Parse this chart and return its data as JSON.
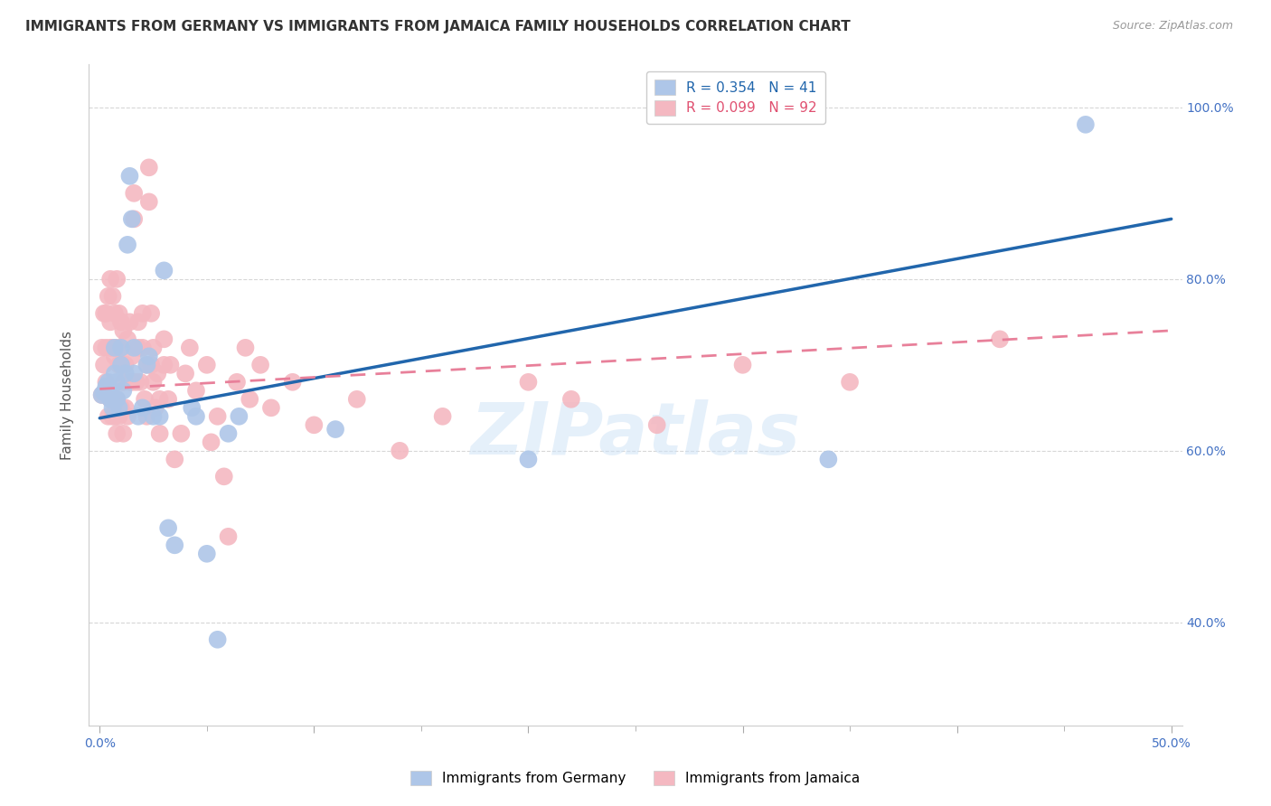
{
  "title": "IMMIGRANTS FROM GERMANY VS IMMIGRANTS FROM JAMAICA FAMILY HOUSEHOLDS CORRELATION CHART",
  "source": "Source: ZipAtlas.com",
  "ylabel": "Family Households",
  "germany_color": "#aec6e8",
  "jamaica_color": "#f4b8c1",
  "germany_line_color": "#2166ac",
  "jamaica_line_color": "#e8809a",
  "background_color": "#ffffff",
  "grid_color": "#cccccc",
  "watermark": "ZIPatlas",
  "title_fontsize": 11,
  "tick_color": "#4472c4",
  "germany_scatter_x": [
    0.001,
    0.002,
    0.003,
    0.003,
    0.004,
    0.005,
    0.005,
    0.006,
    0.007,
    0.007,
    0.008,
    0.008,
    0.009,
    0.01,
    0.01,
    0.011,
    0.012,
    0.013,
    0.014,
    0.015,
    0.016,
    0.016,
    0.018,
    0.02,
    0.022,
    0.023,
    0.025,
    0.028,
    0.03,
    0.032,
    0.035,
    0.043,
    0.045,
    0.05,
    0.055,
    0.06,
    0.065,
    0.11,
    0.2,
    0.34,
    0.46
  ],
  "germany_scatter_y": [
    0.665,
    0.668,
    0.67,
    0.675,
    0.68,
    0.66,
    0.67,
    0.65,
    0.69,
    0.72,
    0.66,
    0.68,
    0.65,
    0.7,
    0.72,
    0.67,
    0.69,
    0.84,
    0.92,
    0.87,
    0.69,
    0.72,
    0.64,
    0.65,
    0.7,
    0.71,
    0.64,
    0.64,
    0.81,
    0.51,
    0.49,
    0.65,
    0.64,
    0.48,
    0.38,
    0.62,
    0.64,
    0.625,
    0.59,
    0.59,
    0.98
  ],
  "jamaica_scatter_x": [
    0.001,
    0.001,
    0.002,
    0.002,
    0.003,
    0.003,
    0.003,
    0.004,
    0.004,
    0.004,
    0.005,
    0.005,
    0.005,
    0.005,
    0.006,
    0.006,
    0.006,
    0.007,
    0.007,
    0.007,
    0.008,
    0.008,
    0.008,
    0.008,
    0.009,
    0.009,
    0.009,
    0.01,
    0.01,
    0.01,
    0.011,
    0.011,
    0.011,
    0.012,
    0.012,
    0.013,
    0.013,
    0.014,
    0.014,
    0.015,
    0.015,
    0.016,
    0.016,
    0.017,
    0.018,
    0.018,
    0.019,
    0.02,
    0.02,
    0.021,
    0.022,
    0.022,
    0.023,
    0.023,
    0.024,
    0.024,
    0.025,
    0.025,
    0.026,
    0.027,
    0.028,
    0.028,
    0.03,
    0.03,
    0.032,
    0.033,
    0.035,
    0.038,
    0.04,
    0.042,
    0.045,
    0.05,
    0.052,
    0.055,
    0.058,
    0.06,
    0.064,
    0.068,
    0.07,
    0.075,
    0.08,
    0.09,
    0.1,
    0.12,
    0.14,
    0.16,
    0.2,
    0.22,
    0.26,
    0.3,
    0.35,
    0.42
  ],
  "jamaica_scatter_y": [
    0.665,
    0.72,
    0.7,
    0.76,
    0.68,
    0.72,
    0.76,
    0.64,
    0.67,
    0.78,
    0.66,
    0.72,
    0.75,
    0.8,
    0.64,
    0.72,
    0.78,
    0.64,
    0.71,
    0.76,
    0.62,
    0.66,
    0.72,
    0.8,
    0.64,
    0.7,
    0.76,
    0.65,
    0.7,
    0.75,
    0.62,
    0.68,
    0.74,
    0.65,
    0.7,
    0.73,
    0.64,
    0.68,
    0.75,
    0.68,
    0.71,
    0.87,
    0.9,
    0.68,
    0.72,
    0.75,
    0.68,
    0.72,
    0.76,
    0.66,
    0.64,
    0.7,
    0.89,
    0.93,
    0.7,
    0.76,
    0.68,
    0.72,
    0.65,
    0.69,
    0.62,
    0.66,
    0.7,
    0.73,
    0.66,
    0.7,
    0.59,
    0.62,
    0.69,
    0.72,
    0.67,
    0.7,
    0.61,
    0.64,
    0.57,
    0.5,
    0.68,
    0.72,
    0.66,
    0.7,
    0.65,
    0.68,
    0.63,
    0.66,
    0.6,
    0.64,
    0.68,
    0.66,
    0.63,
    0.7,
    0.68,
    0.73
  ],
  "germany_trend_x0": 0.0,
  "germany_trend_x1": 0.5,
  "germany_trend_y0": 0.638,
  "germany_trend_y1": 0.87,
  "jamaica_trend_x0": 0.0,
  "jamaica_trend_x1": 0.5,
  "jamaica_trend_y0": 0.672,
  "jamaica_trend_y1": 0.74,
  "xlim": [
    -0.005,
    0.505
  ],
  "ylim": [
    0.28,
    1.05
  ],
  "yticks": [
    0.4,
    0.6,
    0.8,
    1.0
  ],
  "xtick_major": [
    0.0,
    0.1,
    0.2,
    0.3,
    0.4,
    0.5
  ],
  "xtick_minor_step": 0.05,
  "legend_entries": [
    {
      "label": "R = 0.354   N = 41",
      "color": "#aec6e8",
      "text_color": "#2166ac"
    },
    {
      "label": "R = 0.099   N = 92",
      "color": "#f4b8c1",
      "text_color": "#e05070"
    }
  ],
  "bottom_legend": [
    "Immigrants from Germany",
    "Immigrants from Jamaica"
  ]
}
